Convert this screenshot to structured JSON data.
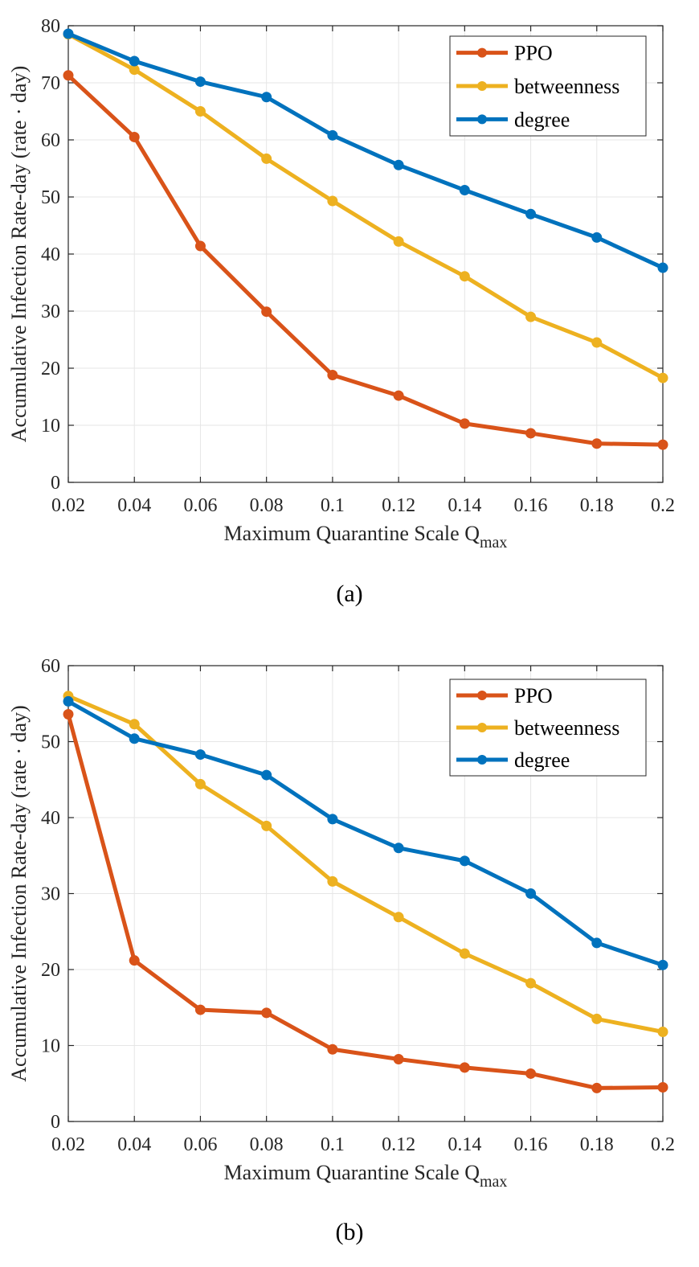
{
  "chart_data": [
    {
      "type": "line",
      "x": [
        0.02,
        0.04,
        0.06,
        0.08,
        0.1,
        0.12,
        0.14,
        0.16,
        0.18,
        0.2
      ],
      "x_tick_labels": [
        "0.02",
        "0.04",
        "0.06",
        "0.08",
        "0.1",
        "0.12",
        "0.14",
        "0.16",
        "0.18",
        "0.2"
      ],
      "xlim": [
        0.02,
        0.2
      ],
      "ylim": [
        0,
        80
      ],
      "y_ticks": [
        0,
        10,
        20,
        30,
        40,
        50,
        60,
        70,
        80
      ],
      "y_tick_labels": [
        "0",
        "10",
        "20",
        "30",
        "40",
        "50",
        "60",
        "70",
        "80"
      ],
      "ylabel": "Accumulative Infection Rate-day (rate · day)",
      "xlabel": "Maximum Quarantine Scale Q",
      "xlabel_sub": "max",
      "caption": "(a)",
      "grid": true,
      "legend_position": "top-right",
      "series": [
        {
          "name": "PPO",
          "color": "#d95319",
          "values": [
            71.3,
            60.5,
            41.4,
            29.9,
            18.8,
            15.2,
            10.3,
            8.6,
            6.8,
            6.6
          ]
        },
        {
          "name": "betweenness",
          "color": "#edb120",
          "values": [
            78.5,
            72.3,
            65.0,
            56.7,
            49.3,
            42.2,
            36.1,
            29.0,
            24.5,
            18.3
          ]
        },
        {
          "name": "degree",
          "color": "#0072bd",
          "values": [
            78.6,
            73.8,
            70.2,
            67.5,
            60.8,
            55.6,
            51.2,
            47.0,
            42.9,
            37.6
          ]
        }
      ]
    },
    {
      "type": "line",
      "x": [
        0.02,
        0.04,
        0.06,
        0.08,
        0.1,
        0.12,
        0.14,
        0.16,
        0.18,
        0.2
      ],
      "x_tick_labels": [
        "0.02",
        "0.04",
        "0.06",
        "0.08",
        "0.1",
        "0.12",
        "0.14",
        "0.16",
        "0.18",
        "0.2"
      ],
      "xlim": [
        0.02,
        0.2
      ],
      "ylim": [
        0,
        60
      ],
      "y_ticks": [
        0,
        10,
        20,
        30,
        40,
        50,
        60
      ],
      "y_tick_labels": [
        "0",
        "10",
        "20",
        "30",
        "40",
        "50",
        "60"
      ],
      "ylabel": "Accumulative Infection Rate-day (rate · day)",
      "xlabel": "Maximum Quarantine Scale Q",
      "xlabel_sub": "max",
      "caption": "(b)",
      "grid": true,
      "legend_position": "top-right",
      "series": [
        {
          "name": "PPO",
          "color": "#d95319",
          "values": [
            53.6,
            21.2,
            14.7,
            14.3,
            9.5,
            8.2,
            7.1,
            6.3,
            4.4,
            4.5
          ]
        },
        {
          "name": "betweenness",
          "color": "#edb120",
          "values": [
            56.0,
            52.3,
            44.4,
            38.9,
            31.6,
            26.9,
            22.1,
            18.2,
            13.5,
            11.8
          ]
        },
        {
          "name": "degree",
          "color": "#0072bd",
          "values": [
            55.3,
            50.4,
            48.3,
            45.6,
            39.8,
            36.0,
            34.3,
            30.0,
            23.5,
            20.6
          ]
        }
      ]
    }
  ]
}
